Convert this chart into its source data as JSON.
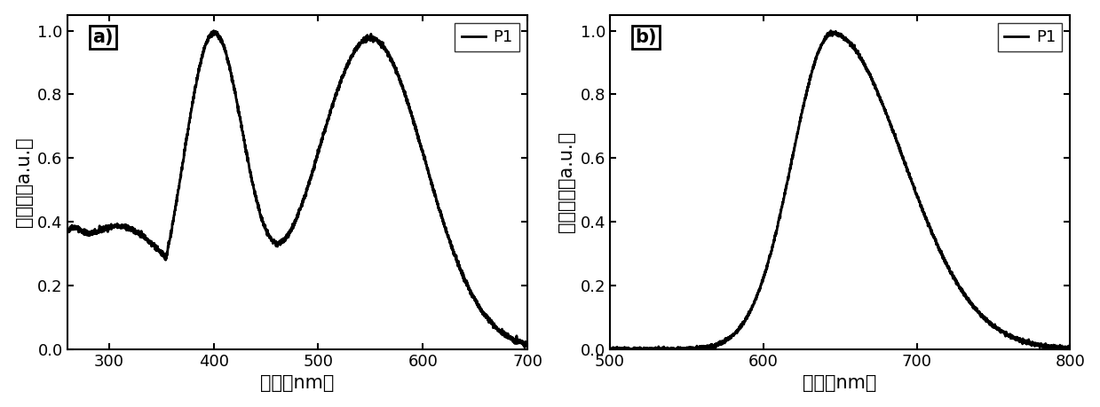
{
  "panel_a": {
    "label": "a)",
    "xlabel": "波长（nm）",
    "ylabel": "吸光度（a.u.）",
    "xlim": [
      260,
      700
    ],
    "ylim": [
      0,
      1.05
    ],
    "xticks": [
      300,
      400,
      500,
      600,
      700
    ],
    "yticks": [
      0.0,
      0.2,
      0.4,
      0.6,
      0.8,
      1.0
    ],
    "legend": "P1",
    "curve_color": "#000000",
    "curve_lw": 2.0
  },
  "panel_b": {
    "label": "b)",
    "xlabel": "波长（nm）",
    "ylabel": "发射强度（a.u.）",
    "xlim": [
      500,
      800
    ],
    "ylim": [
      0,
      1.05
    ],
    "xticks": [
      500,
      600,
      700,
      800
    ],
    "yticks": [
      0.0,
      0.2,
      0.4,
      0.6,
      0.8,
      1.0
    ],
    "legend": "P1",
    "curve_color": "#000000",
    "curve_lw": 2.0
  },
  "background_color": "#ffffff",
  "label_fontsize": 15,
  "tick_fontsize": 13,
  "legend_fontsize": 13,
  "xlabel_fontsize": 15,
  "ylabel_fontsize": 15
}
